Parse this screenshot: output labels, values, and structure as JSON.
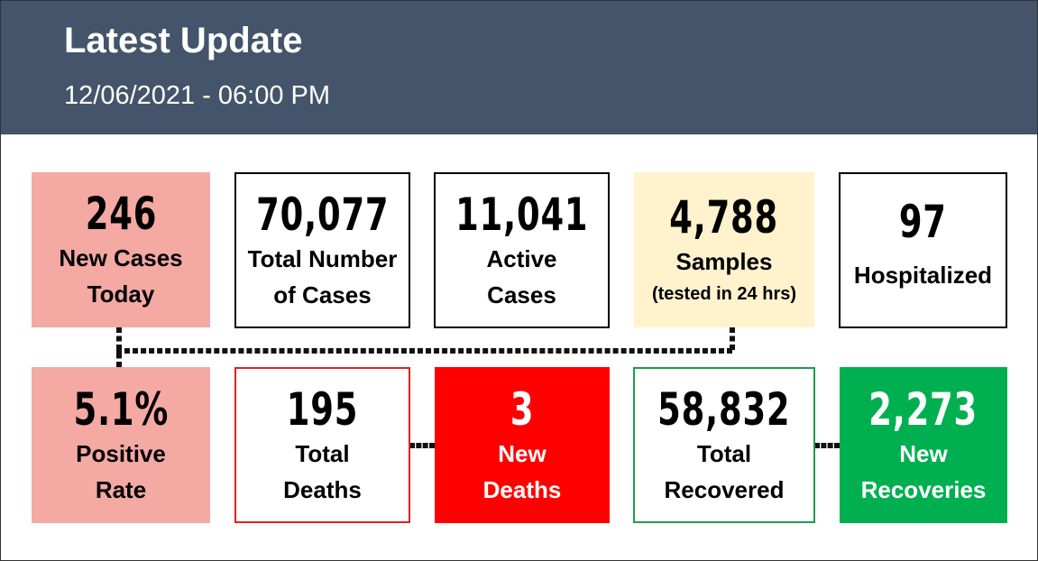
{
  "header": {
    "title": "Latest Update",
    "timestamp": "12/06/2021 - 06:00 PM",
    "background": "#44546a"
  },
  "top_row": [
    {
      "value": "246",
      "label_line1": "New Cases",
      "label_line2": "Today",
      "bg": "#f4a9a3",
      "border": "#f4a9a3",
      "text": "#000000"
    },
    {
      "value": "70,077",
      "label_line1": "Total Number",
      "label_line2": "of Cases",
      "bg": "#ffffff",
      "border": "#000000",
      "text": "#000000"
    },
    {
      "value": "11,041",
      "label_line1": "Active",
      "label_line2": "Cases",
      "bg": "#ffffff",
      "border": "#000000",
      "text": "#000000"
    },
    {
      "value": "4,788",
      "label_line1": "Samples",
      "label_line2": "(tested in 24 hrs)",
      "bg": "#fff2cc",
      "border": "#fff2cc",
      "text": "#000000"
    },
    {
      "value": "97",
      "label_line1": "Hospitalized",
      "bg": "#ffffff",
      "border": "#000000",
      "text": "#000000"
    }
  ],
  "bottom_row": [
    {
      "value": "5.1%",
      "label_line1": "Positive",
      "label_line2": "Rate",
      "bg": "#f4a9a3",
      "border": "#f4a9a3",
      "text": "#000000"
    },
    {
      "value": "195",
      "label_line1": "Total",
      "label_line2": "Deaths",
      "bg": "#ffffff",
      "border": "#e02020",
      "text": "#000000"
    },
    {
      "value": "3",
      "label_line1": "New",
      "label_line2": "Deaths",
      "bg": "#ff0000",
      "border": "#ff0000",
      "text": "#ffffff"
    },
    {
      "value": "58,832",
      "label_line1": "Total",
      "label_line2": "Recovered",
      "bg": "#ffffff",
      "border": "#1a9e4a",
      "text": "#000000"
    },
    {
      "value": "2,273",
      "label_line1": "New",
      "label_line2": "Recoveries",
      "bg": "#00b050",
      "border": "#00b050",
      "text": "#ffffff"
    }
  ]
}
